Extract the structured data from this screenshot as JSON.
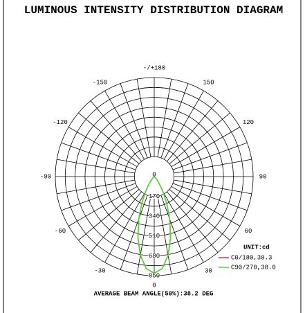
{
  "chart_data": {
    "type": "polar",
    "title": "LUMINOUS INTENSITY DISTRIBUTION DIAGRAM",
    "x": [
      -60,
      -55,
      -50,
      -45,
      -40,
      -35,
      -30,
      -25,
      -20,
      -15,
      -10,
      -5,
      0,
      5,
      10,
      15,
      20,
      25,
      30,
      35,
      40,
      45,
      50,
      55,
      60
    ],
    "series": [
      {
        "name": "C0/180,38.3",
        "color": "#e53030",
        "values": [
          1,
          3,
          7,
          18,
          40,
          82,
          152,
          255,
          390,
          543,
          687,
          792,
          830,
          792,
          687,
          543,
          390,
          255,
          152,
          82,
          40,
          18,
          7,
          3,
          1
        ]
      },
      {
        "name": "C90/270,38.0",
        "color": "#44dd33",
        "values": [
          1,
          2,
          6,
          17,
          38,
          79,
          148,
          250,
          386,
          540,
          685,
          791,
          830,
          791,
          685,
          540,
          386,
          250,
          148,
          79,
          38,
          17,
          6,
          2,
          1
        ]
      }
    ],
    "rlim": [
      0,
      850
    ],
    "rticks": [
      0,
      170,
      340,
      510,
      680,
      850
    ],
    "thetaticks": [
      {
        "value": 180,
        "label": "-/+180"
      },
      150,
      120,
      90,
      60,
      30,
      0,
      -30,
      -60,
      -90,
      -120,
      -150
    ],
    "annotations": [
      "UNIT:cd",
      "AVERAGE BEAM ANGLE(50%):38.2 DEG"
    ]
  }
}
